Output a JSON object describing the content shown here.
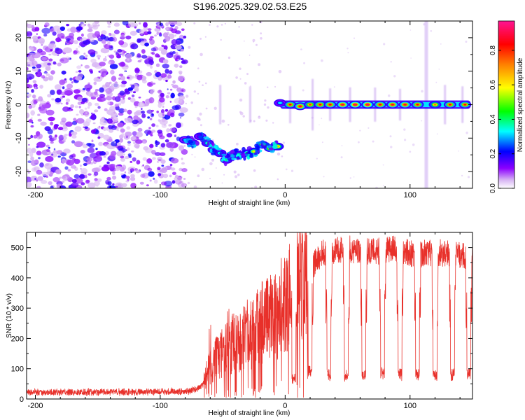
{
  "page": {
    "title": "S196.2025.329.02.53.E25"
  },
  "chart_data": [
    {
      "type": "heatmap",
      "title": "S196.2025.329.02.53.E25",
      "xlabel": "Height of straight line (km)",
      "ylabel": "Frequency (Hz)",
      "xlim": [
        -207,
        150
      ],
      "ylim": [
        -25,
        25
      ],
      "xticks": [
        -200,
        -100,
        0,
        100
      ],
      "xtick_labels": [
        "-200",
        "-100",
        "0",
        "100"
      ],
      "yticks": [
        -20,
        -10,
        0,
        10,
        20
      ],
      "ytick_labels": [
        "-20",
        "-10",
        "0",
        "10",
        "20"
      ],
      "noise_region_x": [
        -207,
        -80
      ],
      "signal_track": [
        {
          "x": -80,
          "y": -10.5,
          "a": 0.32
        },
        {
          "x": -74,
          "y": -11.5,
          "a": 0.38
        },
        {
          "x": -68,
          "y": -9.5,
          "a": 0.35
        },
        {
          "x": -62,
          "y": -11.5,
          "a": 0.42
        },
        {
          "x": -57,
          "y": -13.5,
          "a": 0.45
        },
        {
          "x": -52,
          "y": -14.5,
          "a": 0.4
        },
        {
          "x": -47,
          "y": -16.5,
          "a": 0.42
        },
        {
          "x": -42,
          "y": -15.0,
          "a": 0.45
        },
        {
          "x": -37,
          "y": -15.0,
          "a": 0.48
        },
        {
          "x": -30,
          "y": -14.5,
          "a": 0.55
        },
        {
          "x": -25,
          "y": -14.0,
          "a": 0.62
        },
        {
          "x": -18,
          "y": -12.0,
          "a": 0.75
        },
        {
          "x": -12,
          "y": -13.0,
          "a": 0.8
        },
        {
          "x": -6,
          "y": -12.5,
          "a": 0.7
        },
        {
          "x": -4,
          "y": 0.5,
          "a": 0.35
        },
        {
          "x": 4,
          "y": 0.0,
          "a": 0.85
        },
        {
          "x": 12,
          "y": -0.5,
          "a": 0.9
        },
        {
          "x": 20,
          "y": 0.0,
          "a": 0.8
        },
        {
          "x": 28,
          "y": 0.0,
          "a": 0.85
        },
        {
          "x": 36,
          "y": 0.0,
          "a": 0.88
        },
        {
          "x": 46,
          "y": 0.0,
          "a": 0.92
        },
        {
          "x": 56,
          "y": 0.0,
          "a": 0.95
        },
        {
          "x": 66,
          "y": 0.0,
          "a": 0.95
        },
        {
          "x": 76,
          "y": 0.0,
          "a": 0.88
        },
        {
          "x": 86,
          "y": 0.0,
          "a": 0.9
        },
        {
          "x": 96,
          "y": 0.0,
          "a": 0.9
        },
        {
          "x": 106,
          "y": 0.0,
          "a": 0.85
        },
        {
          "x": 120,
          "y": 0.0,
          "a": 0.75
        },
        {
          "x": 132,
          "y": 0.0,
          "a": 0.85
        },
        {
          "x": 144,
          "y": 0.0,
          "a": 0.85
        }
      ],
      "vertical_streaks_x": [
        -52,
        -28,
        4,
        22,
        36,
        52,
        72,
        92,
        113,
        128,
        142
      ],
      "colorbar": {
        "label": "Normalized spectral amplitude",
        "range": [
          0,
          0.97
        ],
        "ticks": [
          0.0,
          0.2,
          0.4,
          0.6,
          0.8
        ],
        "tick_labels": [
          "0.0",
          "0.2",
          "0.4",
          "0.6",
          "0.8"
        ],
        "colors": [
          "#ffffff",
          "#8b00ff",
          "#0000ff",
          "#00ffff",
          "#00ff00",
          "#ffff00",
          "#ff8000",
          "#ff0000",
          "#ff1493"
        ]
      }
    },
    {
      "type": "line",
      "xlabel": "Height of straight line (km)",
      "ylabel": "SNR (10 * v/v)",
      "xlim": [
        -207,
        150
      ],
      "ylim": [
        0,
        550
      ],
      "xticks": [
        -200,
        -100,
        0,
        100
      ],
      "xtick_labels": [
        "-200",
        "-100",
        "0",
        "100"
      ],
      "yticks": [
        0,
        100,
        200,
        300,
        400,
        500
      ],
      "ytick_labels": [
        "0",
        "100",
        "200",
        "300",
        "400",
        "500"
      ],
      "color": "#e8302a",
      "series": [
        {
          "name": "SNR",
          "x": [
            -207,
            -180,
            -150,
            -120,
            -95,
            -80,
            -72,
            -66,
            -62,
            -58,
            -54,
            -50,
            -46,
            -42,
            -38,
            -34,
            -30,
            -26,
            -22,
            -18,
            -14,
            -10,
            -6,
            -2,
            2,
            6,
            10,
            14,
            18,
            22,
            26,
            30,
            40,
            50,
            60,
            70,
            80,
            90,
            100,
            110,
            120,
            130,
            140,
            150
          ],
          "values": [
            22,
            22,
            23,
            23,
            24,
            25,
            30,
            45,
            90,
            120,
            140,
            150,
            170,
            190,
            160,
            200,
            210,
            220,
            230,
            260,
            270,
            260,
            280,
            310,
            340,
            370,
            390,
            400,
            420,
            440,
            460,
            480,
            490,
            495,
            490,
            485,
            490,
            495,
            480,
            480,
            485,
            480,
            475,
            470
          ]
        }
      ],
      "dips": [
        {
          "x": 7,
          "y": 70
        },
        {
          "x": 20,
          "y": 95
        },
        {
          "x": 35,
          "y": 80
        },
        {
          "x": 49,
          "y": 75
        },
        {
          "x": 63,
          "y": 80
        },
        {
          "x": 78,
          "y": 85
        },
        {
          "x": 92,
          "y": 80
        },
        {
          "x": 106,
          "y": 80
        },
        {
          "x": 120,
          "y": 75
        },
        {
          "x": 134,
          "y": 80
        },
        {
          "x": 147,
          "y": 80
        }
      ]
    }
  ]
}
